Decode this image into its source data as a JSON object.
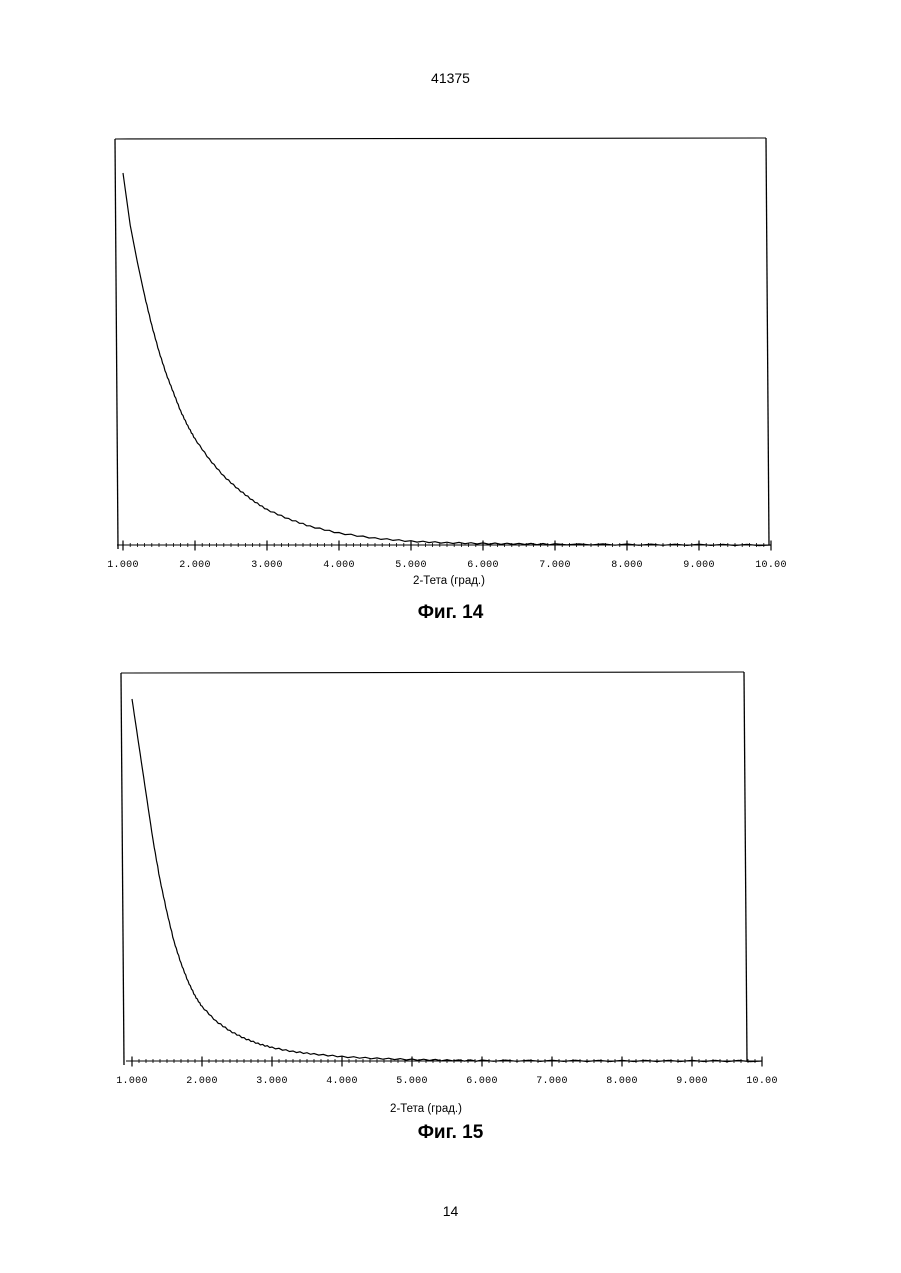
{
  "page": {
    "header_number": "41375",
    "footer_number": "14"
  },
  "chart_data": [
    {
      "type": "line",
      "caption": "Фиг. 14",
      "xlabel": "2-Тета (град.)",
      "ylabel": "",
      "xlim": [
        1.0,
        10.0
      ],
      "x_ticks": [
        1.0,
        2.0,
        3.0,
        4.0,
        5.0,
        6.0,
        7.0,
        8.0,
        9.0,
        10.0
      ],
      "x_tick_labels": [
        "1.000",
        "2.000",
        "3.000",
        "4.000",
        "5.000",
        "6.000",
        "7.000",
        "8.000",
        "9.000",
        "10.00"
      ],
      "minor_ticks_per_major": 10,
      "grid": false,
      "legend": "none",
      "series": [
        {
          "x": [
            1.0,
            1.1,
            1.2,
            1.3,
            1.4,
            1.5,
            1.6,
            1.7,
            1.8,
            1.9,
            2.0,
            2.2,
            2.4,
            2.6,
            2.8,
            3.0,
            3.3,
            3.6,
            4.0,
            4.5,
            5.0,
            5.5,
            6.0,
            6.5,
            7.0,
            8.0,
            9.0,
            10.0
          ],
          "y": [
            1.0,
            0.86,
            0.76,
            0.67,
            0.59,
            0.52,
            0.46,
            0.41,
            0.36,
            0.32,
            0.285,
            0.23,
            0.185,
            0.15,
            0.12,
            0.095,
            0.07,
            0.05,
            0.032,
            0.018,
            0.01,
            0.006,
            0.004,
            0.003,
            0.002,
            0.001,
            0.0005,
            0.0
          ]
        }
      ]
    },
    {
      "type": "line",
      "caption": "Фиг. 15",
      "xlabel": "2-Тета (град.)",
      "ylabel": "",
      "xlim": [
        1.0,
        10.0
      ],
      "x_ticks": [
        1.0,
        2.0,
        3.0,
        4.0,
        5.0,
        6.0,
        7.0,
        8.0,
        9.0,
        10.0
      ],
      "x_tick_labels": [
        "1.000",
        "2.000",
        "3.000",
        "4.000",
        "5.000",
        "6.000",
        "7.000",
        "8.000",
        "9.000",
        "10.00"
      ],
      "minor_ticks_per_major": 10,
      "grid": false,
      "legend": "none",
      "series": [
        {
          "x": [
            1.0,
            1.1,
            1.2,
            1.3,
            1.4,
            1.5,
            1.6,
            1.7,
            1.8,
            1.9,
            2.0,
            2.2,
            2.4,
            2.6,
            2.8,
            3.0,
            3.3,
            3.6,
            4.0,
            4.5,
            5.0,
            5.5,
            6.0,
            7.0,
            8.0,
            9.0,
            10.0
          ],
          "y": [
            1.0,
            0.87,
            0.74,
            0.61,
            0.5,
            0.41,
            0.33,
            0.27,
            0.22,
            0.18,
            0.15,
            0.11,
            0.083,
            0.063,
            0.048,
            0.037,
            0.026,
            0.019,
            0.012,
            0.007,
            0.004,
            0.002,
            0.001,
            0.0005,
            0.0003,
            0.0002,
            0.0
          ]
        }
      ]
    }
  ]
}
